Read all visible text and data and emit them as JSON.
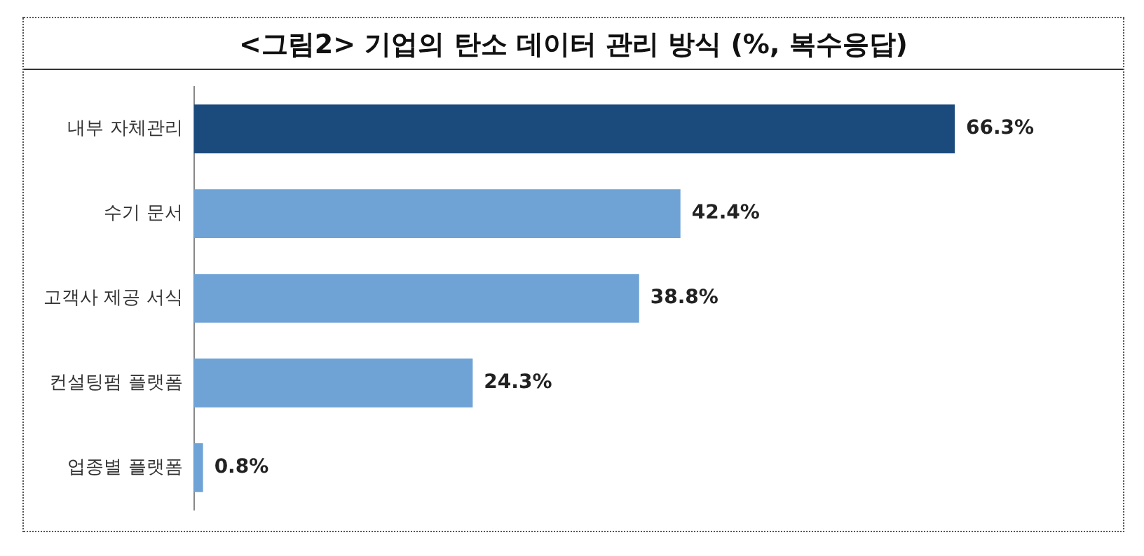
{
  "chart_data": {
    "type": "bar",
    "orientation": "horizontal",
    "title": "<그림2> 기업의 탄소 데이터 관리 방식 (%, 복수응답)",
    "categories": [
      "내부 자체관리",
      "수기 문서",
      "고객사 제공 서식",
      "컨설팅펌 플랫폼",
      "업종별 플랫폼"
    ],
    "values": [
      66.3,
      42.4,
      38.8,
      24.3,
      0.8
    ],
    "colors": [
      "#1b4a7d",
      "#6fa3d6",
      "#6fa3d6",
      "#6fa3d6",
      "#6fa3d6"
    ],
    "value_labels": [
      "66.3%",
      "42.4%",
      "38.8%",
      "24.3%",
      "0.8%"
    ],
    "grid": false,
    "legend": false
  }
}
